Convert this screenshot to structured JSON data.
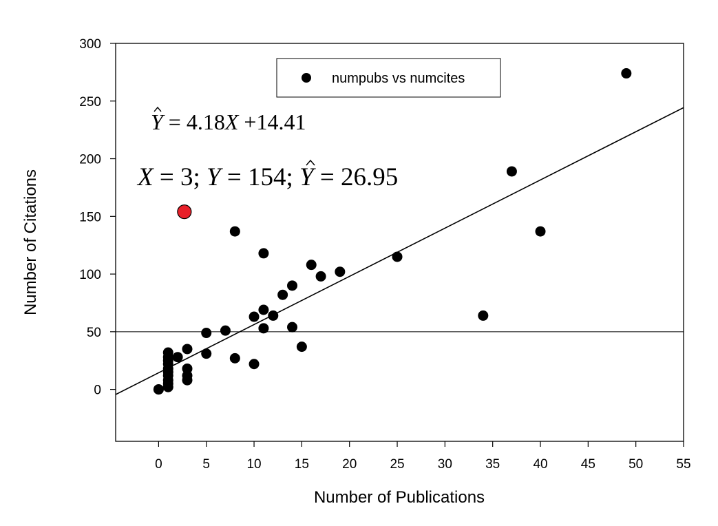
{
  "chart_data": {
    "type": "scatter",
    "xlabel": "Number of Publications",
    "ylabel": "Number of Citations",
    "xlim": [
      -4.5,
      55
    ],
    "ylim": [
      -45,
      300
    ],
    "x_ticks": [
      0,
      5,
      10,
      15,
      20,
      25,
      30,
      35,
      40,
      45,
      50,
      55
    ],
    "y_ticks": [
      0,
      50,
      100,
      150,
      200,
      250,
      300
    ],
    "grid": false,
    "legend": {
      "placement": "top-center",
      "entries": [
        "numpubs vs numcites"
      ]
    },
    "series": [
      {
        "name": "numpubs vs numcites",
        "color": "#000000",
        "points": [
          [
            0,
            0
          ],
          [
            0,
            0
          ],
          [
            1,
            2
          ],
          [
            1,
            5
          ],
          [
            1,
            8
          ],
          [
            1,
            12
          ],
          [
            1,
            15
          ],
          [
            1,
            18
          ],
          [
            1,
            22
          ],
          [
            1,
            25
          ],
          [
            1,
            28
          ],
          [
            1,
            32
          ],
          [
            2,
            28
          ],
          [
            3,
            8
          ],
          [
            3,
            12
          ],
          [
            3,
            18
          ],
          [
            3,
            35
          ],
          [
            5,
            31
          ],
          [
            5,
            49
          ],
          [
            7,
            51
          ],
          [
            8,
            27
          ],
          [
            8,
            137
          ],
          [
            10,
            22
          ],
          [
            10,
            63
          ],
          [
            11,
            53
          ],
          [
            11,
            69
          ],
          [
            11,
            118
          ],
          [
            12,
            64
          ],
          [
            13,
            82
          ],
          [
            14,
            54
          ],
          [
            14,
            90
          ],
          [
            15,
            37
          ],
          [
            16,
            108
          ],
          [
            17,
            98
          ],
          [
            19,
            102
          ],
          [
            25,
            115
          ],
          [
            34,
            64
          ],
          [
            37,
            189
          ],
          [
            40,
            137
          ],
          [
            49,
            274
          ]
        ]
      }
    ],
    "highlighted_point": {
      "x": 2.7,
      "y": 154,
      "color": "#e8202a"
    },
    "regression": {
      "slope": 4.18,
      "intercept": 14.41
    },
    "reference_line_y": 50,
    "annotations": {
      "equation": {
        "yhat": "Y",
        "eq": " = 4.18",
        "x": "X",
        "rest": " +14.41"
      },
      "point": {
        "x": "X",
        "eq1": " = 3; ",
        "y": "Y",
        "eq2": " = 154; ",
        "yhat": "Y",
        "eq3": " = 26.95"
      }
    }
  }
}
